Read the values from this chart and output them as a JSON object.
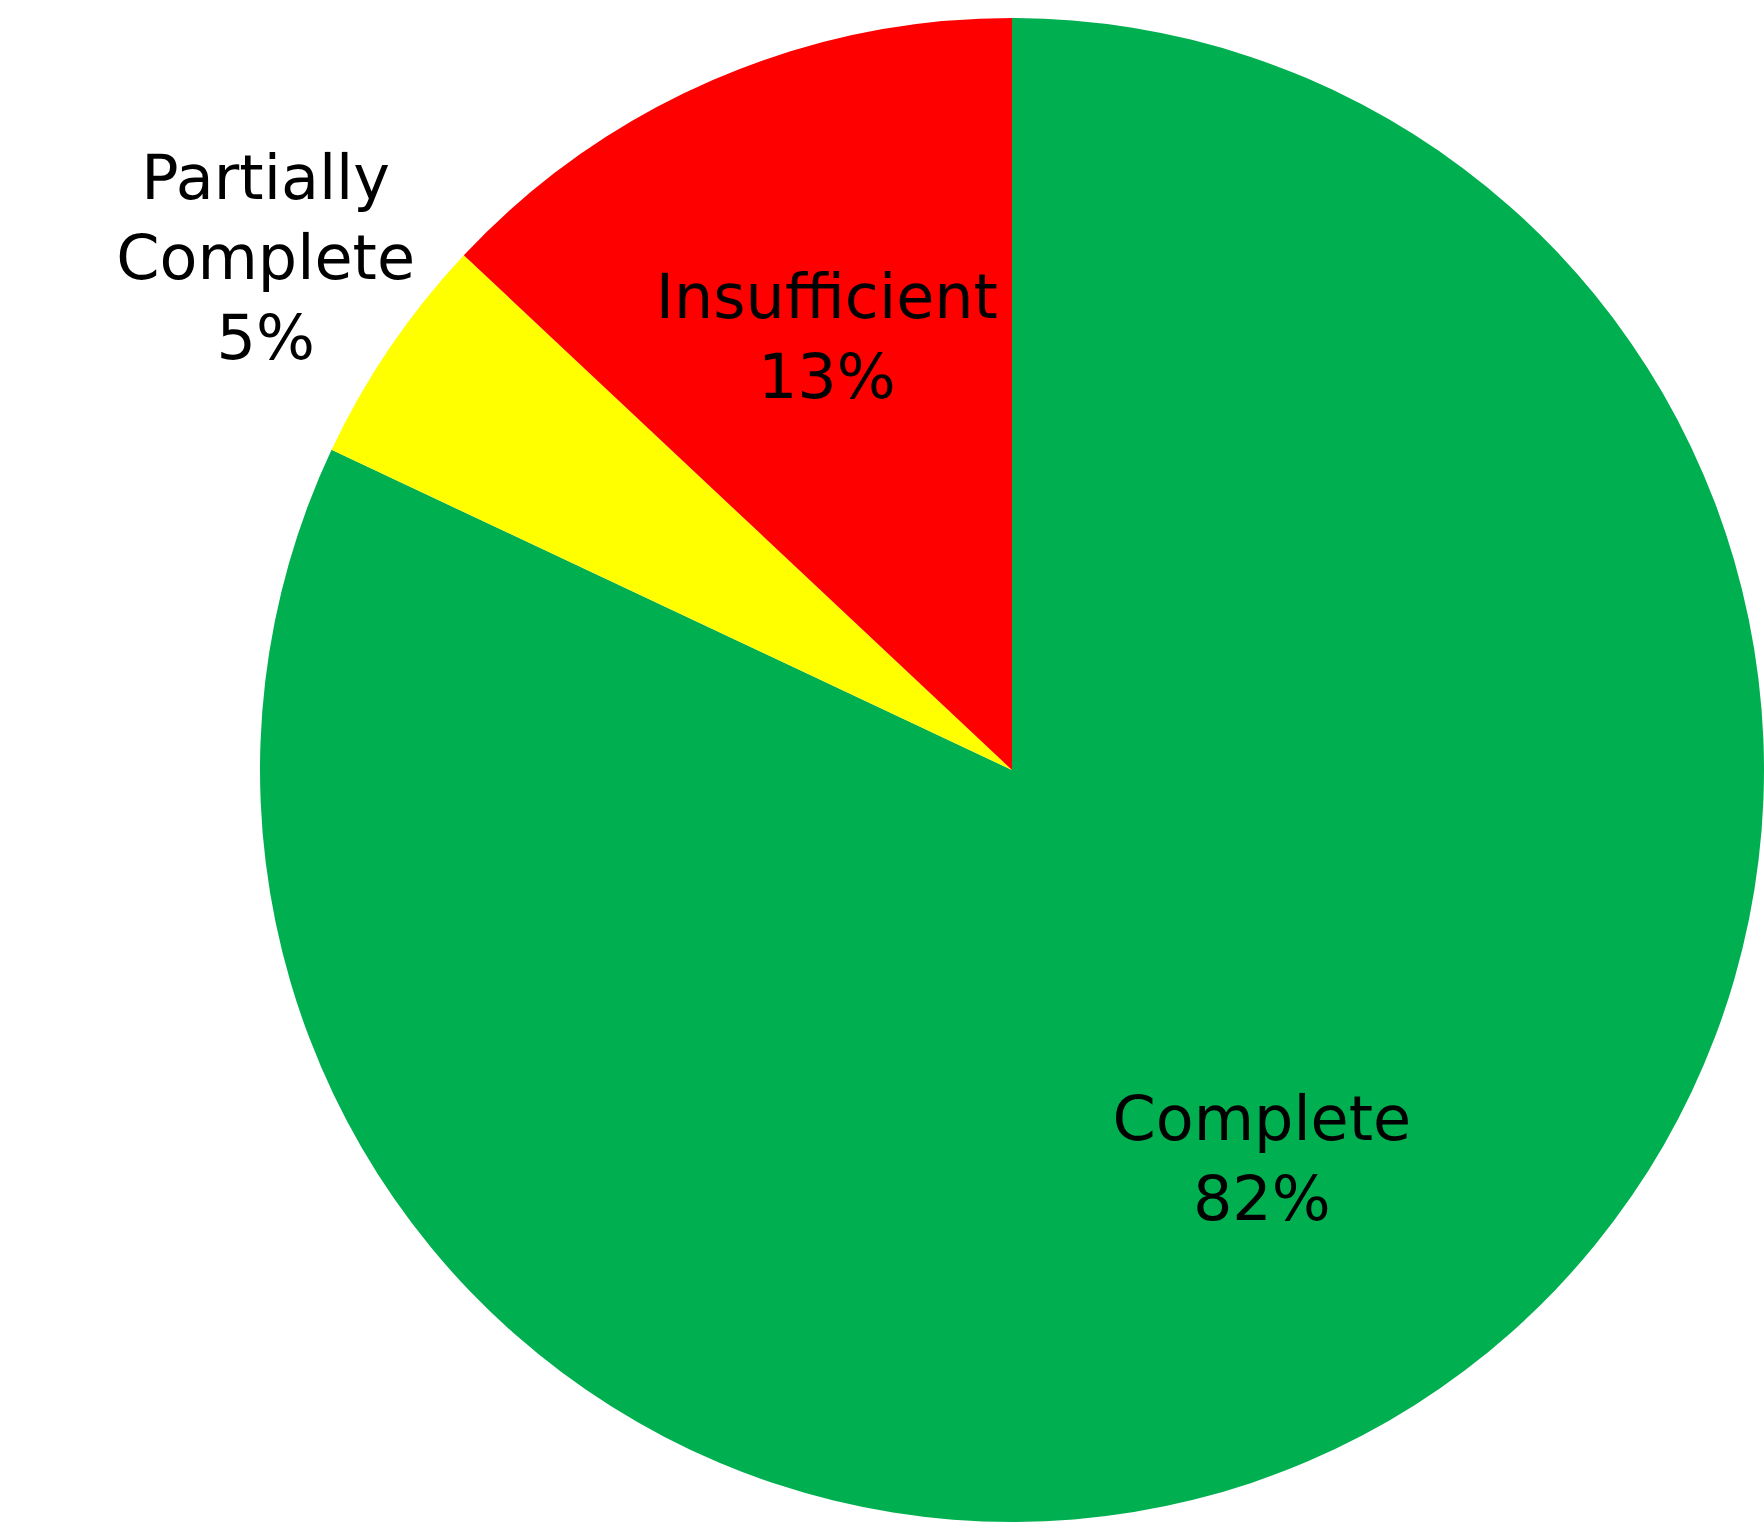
{
  "chart_data": {
    "type": "pie",
    "categories": [
      "Complete",
      "Partially Complete",
      "Insufficient"
    ],
    "values": [
      82,
      5,
      13
    ],
    "colors": [
      "#00b050",
      "#ffff00",
      "#ff0000"
    ],
    "value_labels": [
      "82%",
      "5%",
      "13%"
    ],
    "legend": false
  }
}
